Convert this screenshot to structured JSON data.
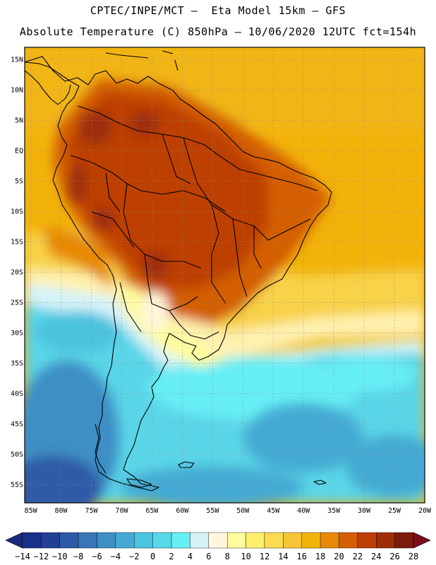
{
  "header": {
    "line1": "CPTEC/INPE/MCT –  Eta Model 15km – GFS",
    "line2": "Absolute Temperature (C) 850hPa – 10/06/2020 12UTC fct=154h"
  },
  "map": {
    "lat_labels": [
      "15N",
      "10N",
      "5N",
      "EQ",
      "5S",
      "10S",
      "15S",
      "20S",
      "25S",
      "30S",
      "35S",
      "40S",
      "45S",
      "50S",
      "55S"
    ],
    "lat_values": [
      15,
      10,
      5,
      0,
      -5,
      -10,
      -15,
      -20,
      -25,
      -30,
      -35,
      -40,
      -45,
      -50,
      -55
    ],
    "lon_labels": [
      "85W",
      "80W",
      "75W",
      "70W",
      "65W",
      "60W",
      "55W",
      "50W",
      "45W",
      "40W",
      "35W",
      "30W",
      "25W",
      "20W"
    ],
    "lon_values": [
      -85,
      -80,
      -75,
      -70,
      -65,
      -60,
      -55,
      -50,
      -45,
      -40,
      -35,
      -30,
      -25,
      -20
    ],
    "lon_range": [
      -86,
      -20
    ],
    "lat_range": [
      -58,
      17
    ],
    "colors": {
      "background": "#f2b20a",
      "frame": "#000000",
      "grid": "#8a8a8a"
    }
  },
  "colorbar": {
    "labels": [
      "-14",
      "-12",
      "-10",
      "-8",
      "-6",
      "-4",
      "-2",
      "0",
      "2",
      "4",
      "6",
      "8",
      "10",
      "12",
      "14",
      "16",
      "18",
      "20",
      "22",
      "24",
      "26",
      "28"
    ],
    "colors": [
      "#1a2f8a",
      "#233f95",
      "#2d5aa6",
      "#3a75b7",
      "#3f8fc6",
      "#45aad3",
      "#4cc3df",
      "#57d7ea",
      "#66eef5",
      "#d4f2f8",
      "#fff6dc",
      "#fffb9e",
      "#fff06e",
      "#fbdb52",
      "#f6c535",
      "#f2b20a",
      "#e78906",
      "#d45f05",
      "#bd4006",
      "#9e2d08",
      "#7e1a0c"
    ],
    "min_color": "#1a2a7a",
    "max_color": "#7a0f1a"
  }
}
